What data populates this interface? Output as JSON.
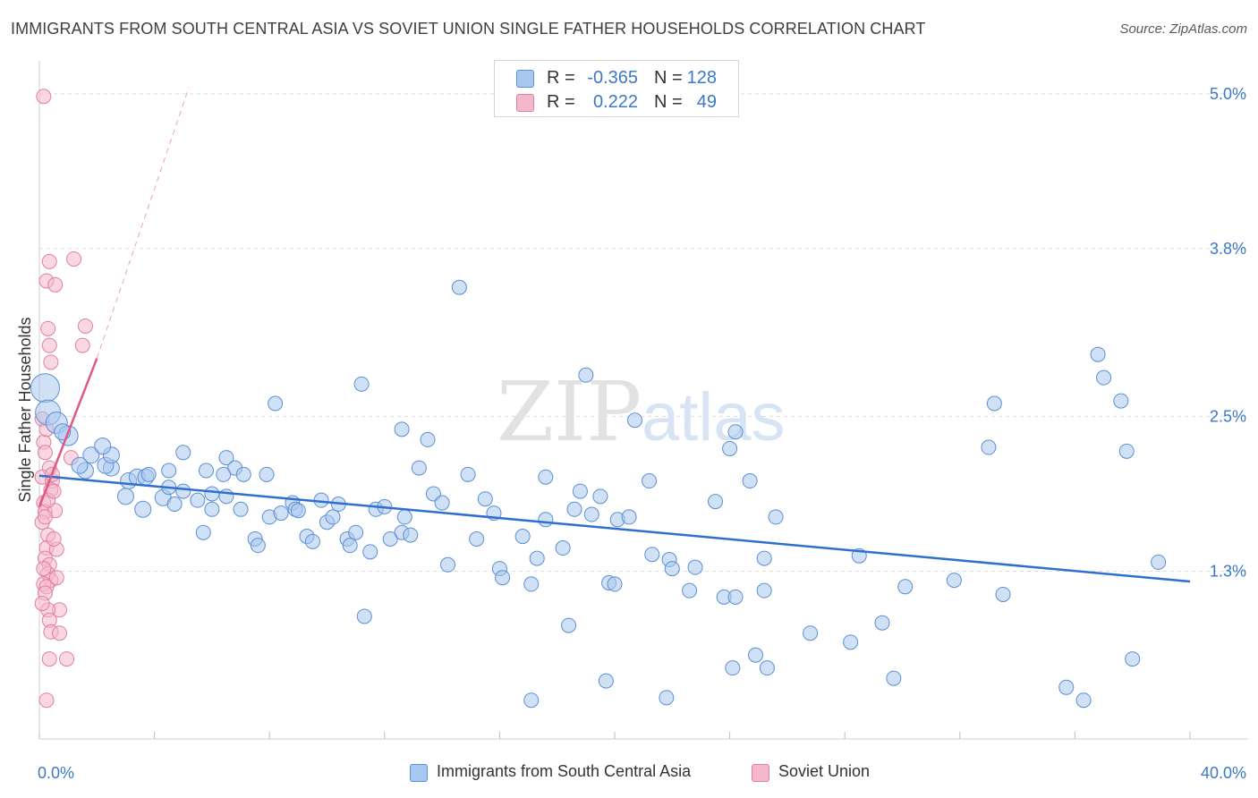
{
  "title": "IMMIGRANTS FROM SOUTH CENTRAL ASIA VS SOVIET UNION SINGLE FATHER HOUSEHOLDS CORRELATION CHART",
  "source": "Source: ZipAtlas.com",
  "watermark": {
    "zip": "ZIP",
    "atlas": "atlas"
  },
  "legend": {
    "rows": [
      {
        "r_label": "R =",
        "r_value": "-0.365",
        "n_label": "N =",
        "n_value": "128",
        "color": "#a9c8ef"
      },
      {
        "r_label": "R =",
        "r_value": "0.222",
        "n_label": "N =",
        "n_value": "49",
        "color": "#f5b8cb"
      }
    ]
  },
  "bottom_legend": [
    {
      "label": "Immigrants from South Central Asia",
      "color": "#a9c8ef"
    },
    {
      "label": "Soviet Union",
      "color": "#f5b8cb"
    }
  ],
  "colors": {
    "blue_fill": "#a9c8ef",
    "blue_stroke": "#5b8fd4",
    "blue_line": "#2f6fd0",
    "pink_fill": "#f5b8cb",
    "pink_stroke": "#e07fa0",
    "pink_line": "#e0578a",
    "axis_label": "#3a78c8",
    "grid": "#dcdcdc"
  },
  "chart_data": {
    "type": "scatter",
    "title": "IMMIGRANTS FROM SOUTH CENTRAL ASIA VS SOVIET UNION SINGLE FATHER HOUSEHOLDS CORRELATION CHART",
    "xlabel": "",
    "ylabel": "Single Father Households",
    "xlim": [
      0,
      40
    ],
    "ylim": [
      0.0,
      5.2
    ],
    "x_tick_labels": [
      {
        "value": 0,
        "label": "0.0%"
      },
      {
        "value": 40,
        "label": "40.0%"
      }
    ],
    "y_tick_labels": [
      {
        "value": 1.3,
        "label": "1.3%"
      },
      {
        "value": 2.5,
        "label": "2.5%"
      },
      {
        "value": 3.8,
        "label": "3.8%"
      },
      {
        "value": 5.0,
        "label": "5.0%"
      }
    ],
    "grid": true,
    "legend_position": "top-center",
    "series": [
      {
        "name": "Immigrants from South Central Asia",
        "color": "#a9c8ef",
        "trend": {
          "x": [
            0,
            40
          ],
          "y": [
            2.04,
            1.22
          ]
        },
        "points": [
          [
            0.2,
            2.72,
            16
          ],
          [
            0.3,
            2.53,
            14
          ],
          [
            0.6,
            2.45,
            12
          ],
          [
            1.0,
            2.35,
            11
          ],
          [
            1.6,
            2.08,
            9
          ],
          [
            2.5,
            2.1,
            9
          ],
          [
            1.8,
            2.2,
            9
          ],
          [
            2.3,
            2.12,
            9
          ],
          [
            2.5,
            2.2,
            9
          ],
          [
            3.1,
            2.0,
            9
          ],
          [
            3.0,
            1.88,
            9
          ],
          [
            3.4,
            2.03,
            9
          ],
          [
            3.6,
            1.78,
            9
          ],
          [
            3.7,
            2.03,
            9
          ],
          [
            3.8,
            2.05,
            8
          ],
          [
            4.3,
            1.87,
            9
          ],
          [
            4.5,
            2.08,
            8
          ],
          [
            4.7,
            1.82,
            8
          ],
          [
            4.5,
            1.95,
            8
          ],
          [
            5.0,
            1.92,
            8
          ],
          [
            5.0,
            2.22,
            8
          ],
          [
            5.5,
            1.85,
            8
          ],
          [
            5.7,
            1.6,
            8
          ],
          [
            5.8,
            2.08,
            8
          ],
          [
            6.0,
            1.9,
            8
          ],
          [
            6.0,
            1.78,
            8
          ],
          [
            6.5,
            2.18,
            8
          ],
          [
            6.8,
            2.1,
            8
          ],
          [
            6.4,
            2.05,
            8
          ],
          [
            6.5,
            1.88,
            8
          ],
          [
            7.1,
            2.05,
            8
          ],
          [
            7.0,
            1.78,
            8
          ],
          [
            7.5,
            1.55,
            8
          ],
          [
            7.6,
            1.5,
            8
          ],
          [
            7.9,
            2.05,
            8
          ],
          [
            8.0,
            1.72,
            8
          ],
          [
            8.2,
            2.6,
            8
          ],
          [
            8.4,
            1.75,
            8
          ],
          [
            8.8,
            1.83,
            8
          ],
          [
            8.9,
            1.78,
            8
          ],
          [
            9.0,
            1.77,
            8
          ],
          [
            9.3,
            1.57,
            8
          ],
          [
            9.5,
            1.53,
            8
          ],
          [
            9.8,
            1.85,
            8
          ],
          [
            10.0,
            1.68,
            8
          ],
          [
            10.2,
            1.72,
            8
          ],
          [
            10.4,
            1.82,
            8
          ],
          [
            10.7,
            1.55,
            8
          ],
          [
            10.8,
            1.5,
            8
          ],
          [
            11.0,
            1.6,
            8
          ],
          [
            11.2,
            2.75,
            8
          ],
          [
            11.5,
            1.45,
            8
          ],
          [
            11.7,
            1.78,
            8
          ],
          [
            12.0,
            1.8,
            8
          ],
          [
            12.2,
            1.55,
            8
          ],
          [
            12.6,
            1.6,
            8
          ],
          [
            12.7,
            1.72,
            8
          ],
          [
            12.6,
            2.4,
            8
          ],
          [
            12.9,
            1.58,
            8
          ],
          [
            13.2,
            2.1,
            8
          ],
          [
            13.5,
            2.32,
            8
          ],
          [
            13.7,
            1.9,
            8
          ],
          [
            14.0,
            1.83,
            8
          ],
          [
            14.2,
            1.35,
            8
          ],
          [
            14.6,
            3.5,
            8
          ],
          [
            14.9,
            2.05,
            8
          ],
          [
            15.2,
            1.55,
            8
          ],
          [
            15.5,
            1.86,
            8
          ],
          [
            15.8,
            1.75,
            8
          ],
          [
            16.0,
            1.32,
            8
          ],
          [
            16.1,
            1.25,
            8
          ],
          [
            16.8,
            1.57,
            8
          ],
          [
            17.1,
            1.2,
            8
          ],
          [
            17.3,
            1.4,
            8
          ],
          [
            17.6,
            1.7,
            8
          ],
          [
            17.6,
            2.03,
            8
          ],
          [
            18.2,
            1.48,
            8
          ],
          [
            18.6,
            1.78,
            8
          ],
          [
            18.8,
            1.92,
            8
          ],
          [
            19.2,
            1.74,
            8
          ],
          [
            19.0,
            2.82,
            8
          ],
          [
            19.5,
            1.88,
            8
          ],
          [
            19.8,
            1.21,
            8
          ],
          [
            20.1,
            1.7,
            8
          ],
          [
            20.5,
            1.72,
            8
          ],
          [
            20.7,
            2.47,
            8
          ],
          [
            21.2,
            2.0,
            8
          ],
          [
            21.3,
            1.43,
            8
          ],
          [
            21.9,
            1.39,
            8
          ],
          [
            22.6,
            1.15,
            8
          ],
          [
            22.8,
            1.33,
            8
          ],
          [
            23.5,
            1.84,
            8
          ],
          [
            23.8,
            1.1,
            8
          ],
          [
            24.2,
            1.1,
            8
          ],
          [
            24.2,
            2.38,
            8
          ],
          [
            24.0,
            2.25,
            8
          ],
          [
            24.7,
            2.0,
            8
          ],
          [
            25.2,
            1.4,
            8
          ],
          [
            25.6,
            1.72,
            8
          ],
          [
            0.8,
            2.38,
            9
          ],
          [
            1.4,
            2.12,
            9
          ],
          [
            2.2,
            2.27,
            9
          ],
          [
            22.0,
            1.32,
            8
          ],
          [
            25.2,
            1.15,
            8
          ],
          [
            20.0,
            1.2,
            8
          ],
          [
            11.3,
            0.95,
            8
          ],
          [
            18.4,
            0.88,
            8
          ],
          [
            19.7,
            0.45,
            8
          ],
          [
            17.1,
            0.3,
            8
          ],
          [
            21.8,
            0.32,
            8
          ],
          [
            24.9,
            0.65,
            8
          ],
          [
            25.3,
            0.55,
            8
          ],
          [
            26.8,
            0.82,
            8
          ],
          [
            28.2,
            0.75,
            8
          ],
          [
            29.3,
            0.9,
            8
          ],
          [
            29.7,
            0.47,
            8
          ],
          [
            30.1,
            1.18,
            8
          ],
          [
            31.8,
            1.23,
            8
          ],
          [
            33.0,
            2.26,
            8
          ],
          [
            33.2,
            2.6,
            8
          ],
          [
            33.5,
            1.12,
            8
          ],
          [
            35.7,
            0.4,
            8
          ],
          [
            36.8,
            2.98,
            8
          ],
          [
            37.0,
            2.8,
            8
          ],
          [
            37.6,
            2.62,
            8
          ],
          [
            37.8,
            2.23,
            8
          ],
          [
            38.0,
            0.62,
            8
          ],
          [
            38.9,
            1.37,
            8
          ],
          [
            36.3,
            0.3,
            8
          ],
          [
            24.1,
            0.55,
            8
          ],
          [
            28.5,
            1.42,
            8
          ]
        ]
      },
      {
        "name": "Soviet Union",
        "color": "#f5b8cb",
        "trend": {
          "x": [
            0,
            2.0
          ],
          "y": [
            1.8,
            2.95
          ]
        },
        "trend_extension": {
          "x": [
            2.0,
            5.2
          ],
          "y": [
            2.95,
            5.05
          ]
        },
        "points": [
          [
            0.15,
            4.98,
            8
          ],
          [
            0.35,
            3.7,
            8
          ],
          [
            1.2,
            3.72,
            8
          ],
          [
            0.25,
            3.55,
            8
          ],
          [
            0.55,
            3.52,
            8
          ],
          [
            0.3,
            3.18,
            8
          ],
          [
            1.6,
            3.2,
            8
          ],
          [
            0.35,
            3.05,
            8
          ],
          [
            1.5,
            3.05,
            8
          ],
          [
            0.4,
            2.92,
            8
          ],
          [
            0.1,
            2.48,
            8
          ],
          [
            0.15,
            2.3,
            8
          ],
          [
            0.2,
            2.22,
            8
          ],
          [
            1.1,
            2.18,
            8
          ],
          [
            0.35,
            2.1,
            8
          ],
          [
            0.1,
            2.03,
            8
          ],
          [
            0.45,
            2.0,
            8
          ],
          [
            0.4,
            1.93,
            8
          ],
          [
            0.15,
            1.83,
            8
          ],
          [
            0.2,
            1.76,
            8
          ],
          [
            0.55,
            1.77,
            8
          ],
          [
            0.1,
            1.68,
            8
          ],
          [
            0.3,
            1.58,
            8
          ],
          [
            0.25,
            1.48,
            8
          ],
          [
            0.6,
            1.47,
            8
          ],
          [
            0.2,
            1.4,
            8
          ],
          [
            0.35,
            1.35,
            8
          ],
          [
            0.3,
            1.28,
            8
          ],
          [
            0.4,
            1.23,
            8
          ],
          [
            0.15,
            1.2,
            8
          ],
          [
            0.25,
            1.18,
            8
          ],
          [
            0.2,
            1.13,
            8
          ],
          [
            0.7,
            1.0,
            8
          ],
          [
            0.3,
            1.0,
            8
          ],
          [
            0.35,
            0.92,
            8
          ],
          [
            0.4,
            0.83,
            8
          ],
          [
            0.7,
            0.82,
            8
          ],
          [
            0.35,
            0.62,
            8
          ],
          [
            0.95,
            0.62,
            8
          ],
          [
            0.25,
            0.3,
            8
          ],
          [
            0.15,
            1.32,
            8
          ],
          [
            0.5,
            1.55,
            8
          ],
          [
            0.3,
            1.85,
            8
          ],
          [
            0.2,
            1.72,
            8
          ],
          [
            0.45,
            2.05,
            8
          ],
          [
            0.6,
            1.25,
            8
          ],
          [
            0.1,
            1.05,
            8
          ],
          [
            0.25,
            2.4,
            8
          ],
          [
            0.5,
            1.92,
            8
          ]
        ]
      }
    ]
  }
}
